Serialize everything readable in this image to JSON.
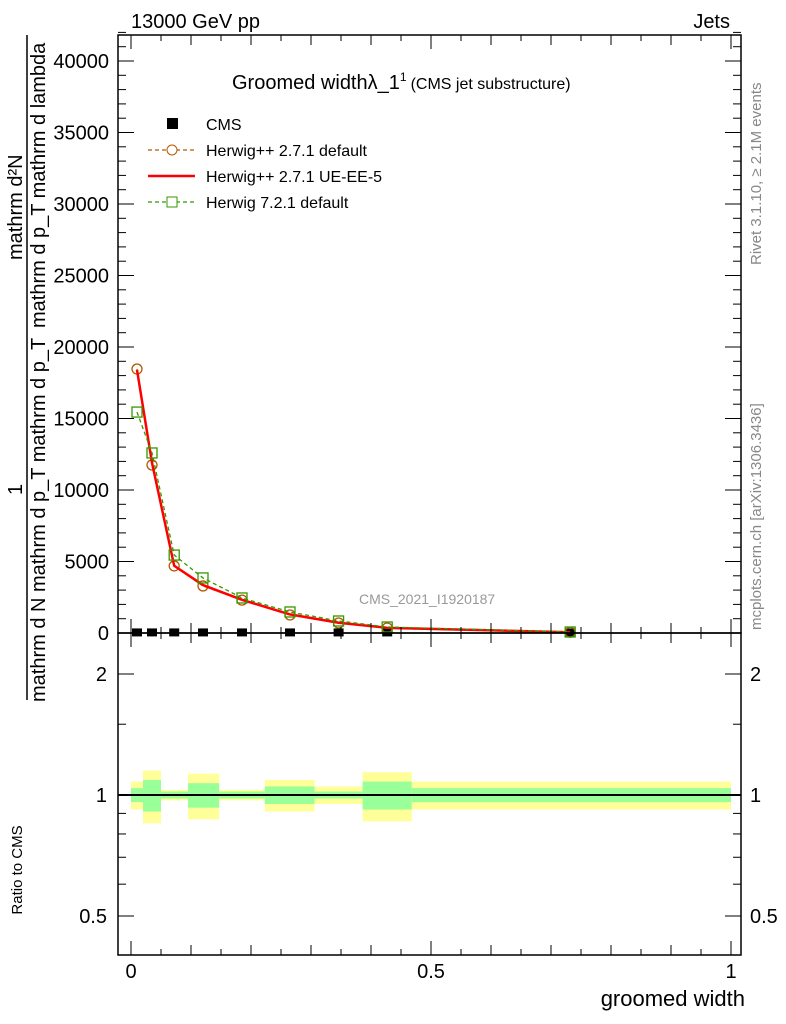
{
  "header": {
    "left": "13000 GeV pp",
    "right": "Jets"
  },
  "side": {
    "rivet": "Rivet 3.1.10, ≥ 2.1M events",
    "mcplots": "mcplots.cern.ch [arXiv:1306.3436]"
  },
  "watermark": "CMS_2021_I1920187",
  "chart_data": {
    "type": "line",
    "title": "Groomed widthλ_1",
    "title_sup": "1",
    "subtitle": "(CMS jet substructure)",
    "xlabel": "groomed width",
    "ylabel": {
      "numerator": "mathrm d²N",
      "one": "1",
      "den_a": "mathrm d N mathrm d p_T mathrm d p_T",
      "den_b": "mathrm d p_T mathrm d lambda"
    },
    "ratio_ylabel": "Ratio to CMS",
    "xlim": [
      0,
      1
    ],
    "ylim": [
      0,
      42000
    ],
    "ratio_ylim": [
      0.4,
      2.5
    ],
    "ratio_scale": "log",
    "x_tick_labels": [
      "0",
      "0.5",
      "1"
    ],
    "y_tick_labels": [
      "0",
      "5000",
      "10000",
      "15000",
      "20000",
      "25000",
      "30000",
      "35000",
      "40000"
    ],
    "ratio_tick_labels": [
      "0.5",
      "1",
      "2"
    ],
    "legend_position": "top-left",
    "bin_edges": [
      0,
      0.02,
      0.05,
      0.095,
      0.147,
      0.223,
      0.306,
      0.386,
      0.468,
      1.0
    ],
    "x": [
      0.01,
      0.035,
      0.072,
      0.12,
      0.185,
      0.265,
      0.346,
      0.427,
      0.732
    ],
    "series": [
      {
        "name": "CMS",
        "color": "#000000",
        "style": "marker",
        "values": [
          40,
          40,
          40,
          40,
          40,
          40,
          40,
          40,
          40
        ]
      },
      {
        "name": "Herwig++ 2.7.1 default",
        "color": "#b35900",
        "style": "dashed-circle",
        "values": [
          18460,
          11750,
          4690,
          3290,
          2300,
          1260,
          700,
          350,
          50
        ]
      },
      {
        "name": "Herwig++ 2.7.1 UE-EE-5",
        "color": "#ff0000",
        "style": "solid",
        "values": [
          18400,
          11900,
          4700,
          3350,
          2320,
          1300,
          720,
          360,
          50
        ]
      },
      {
        "name": "Herwig 7.2.1 default",
        "color": "#339900",
        "style": "dashed-square",
        "values": [
          15450,
          12590,
          5450,
          3850,
          2450,
          1470,
          840,
          420,
          70
        ]
      }
    ],
    "ratio_band_stat": [
      0.04,
      0.09,
      0.02,
      0.07,
      0.02,
      0.05,
      0.02,
      0.08,
      0.04
    ],
    "ratio_band_total": [
      0.08,
      0.15,
      0.03,
      0.13,
      0.03,
      0.09,
      0.05,
      0.14,
      0.08
    ],
    "colors": {
      "band_stat": "#99ff99",
      "band_total": "#ffff99"
    }
  }
}
